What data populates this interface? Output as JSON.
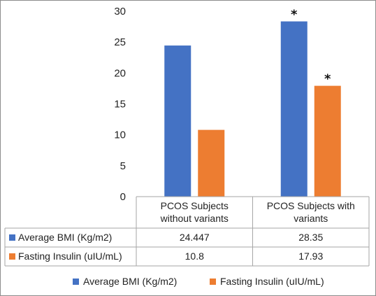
{
  "chart_data": {
    "type": "bar",
    "categories": [
      [
        "PCOS Subjects",
        "without variants"
      ],
      [
        "PCOS Subjects with",
        "variants"
      ]
    ],
    "series": [
      {
        "name": "Average BMI (Kg/m2)",
        "values": [
          24.447,
          28.35
        ],
        "labels": [
          "24.447",
          "28.35"
        ],
        "color": "#4472c4"
      },
      {
        "name": "Fasting Insulin (uIU/mL)",
        "values": [
          10.8,
          17.93
        ],
        "labels": [
          "10.8",
          "17.93"
        ],
        "color": "#ed7d31"
      }
    ],
    "yticks": [
      "0",
      "5",
      "10",
      "15",
      "20",
      "25",
      "30"
    ],
    "ylim": [
      0,
      30
    ],
    "significance": [
      {
        "series": 0,
        "category": 1,
        "marker": "*"
      },
      {
        "series": 1,
        "category": 1,
        "marker": "*"
      }
    ],
    "data_table": true,
    "legend_position": "bottom",
    "grid": false
  }
}
